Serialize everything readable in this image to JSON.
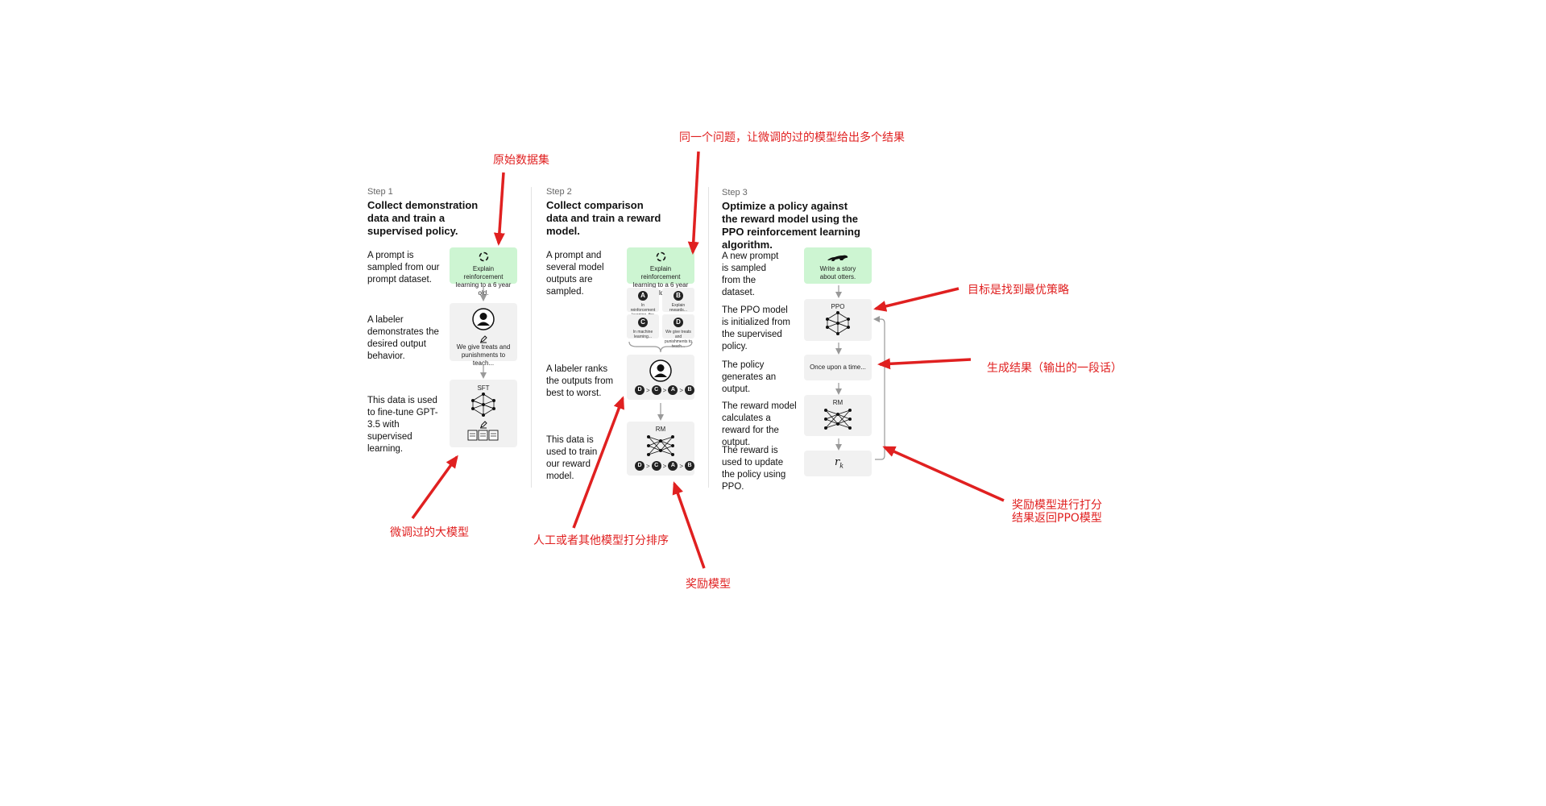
{
  "step1": {
    "label": "Step 1",
    "title": "Collect demonstration data and train a supervised policy.",
    "desc_prompt": "A prompt is sampled from our prompt dataset.",
    "prompt_card": "Explain reinforcement learning to a 6 year old.",
    "desc_labeler": "A labeler demonstrates the desired output behavior.",
    "labeler_card": "We give treats and punishments to teach...",
    "desc_finetune": "This data is used to fine-tune GPT-3.5 with supervised learning.",
    "model_label": "SFT"
  },
  "step2": {
    "label": "Step 2",
    "title": "Collect comparison data and train a reward model.",
    "desc_prompt": "A prompt and several model outputs are sampled.",
    "prompt_card": "Explain reinforcement learning to a 6 year old.",
    "outputs": [
      {
        "letter": "A",
        "text": "In reinforcement learning, the agent is..."
      },
      {
        "letter": "B",
        "text": "Explain rewards..."
      },
      {
        "letter": "C",
        "text": "In machine learning..."
      },
      {
        "letter": "D",
        "text": "We give treats and punishments to teach..."
      }
    ],
    "desc_rank": "A labeler ranks the outputs from best to worst.",
    "ranking": [
      "D",
      "C",
      "A",
      "B"
    ],
    "desc_train": "This data is used to train our reward model.",
    "model_label": "RM"
  },
  "step3": {
    "label": "Step 3",
    "title": "Optimize a policy against the reward model using the PPO reinforcement learning algorithm.",
    "desc_prompt": "A new prompt is sampled from the dataset.",
    "prompt_card": "Write a story about otters.",
    "desc_ppo": "The PPO model is initialized from the supervised policy.",
    "ppo_label": "PPO",
    "desc_output": "The policy generates an output.",
    "output_text": "Once upon a time...",
    "desc_reward": "The reward model calculates a reward for the output.",
    "rm_label": "RM",
    "desc_update": "The reward is used to update the policy using PPO.",
    "reward_symbol": "r",
    "reward_subscript": "k"
  },
  "annotations": {
    "dataset": "原始数据集",
    "sampled_outputs": "同一个问题，让微调的过的模型给出多个结果",
    "finetuned_model": "微调过的大模型",
    "human_rank": "人工或者其他模型打分排序",
    "reward_model": "奖励模型",
    "optimal_policy": "目标是找到最优策略",
    "generate_result": "生成结果（输出的一段话）",
    "reward_score_line1": "奖励模型进行打分",
    "reward_score_line2": "结果返回PPO模型"
  },
  "colors": {
    "annotation": "#e02020",
    "prompt_card": "#cdf5d2",
    "card": "#f1f1f1"
  }
}
